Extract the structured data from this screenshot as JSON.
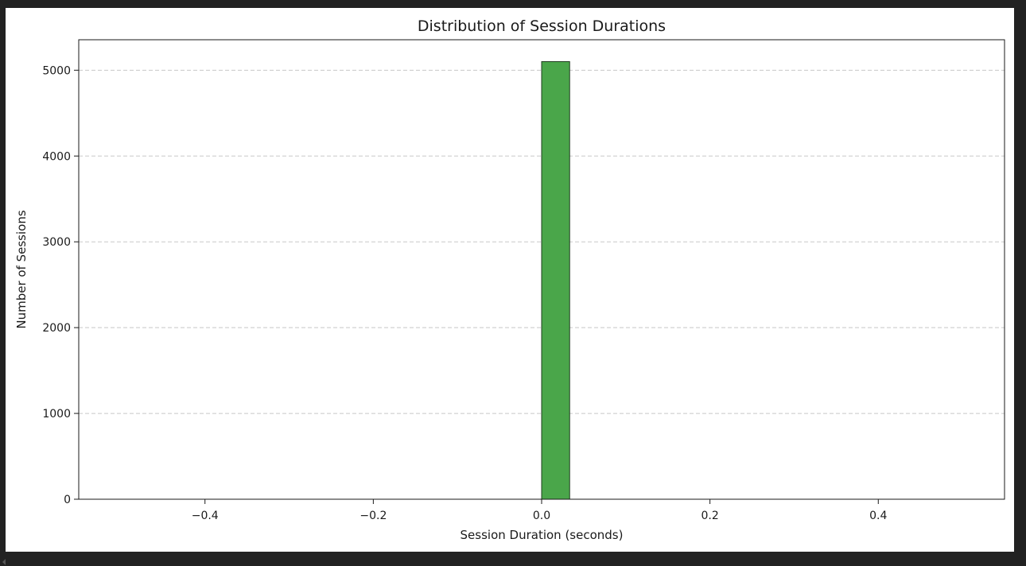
{
  "chart_data": {
    "type": "bar",
    "title": "Distribution of Session Durations",
    "xlabel": "Session Duration (seconds)",
    "ylabel": "Number of Sessions",
    "xlim": [
      -0.55,
      0.55
    ],
    "ylim": [
      0,
      5355
    ],
    "xticks": [
      -0.4,
      -0.2,
      0.0,
      0.2,
      0.4
    ],
    "xtick_labels": [
      "−0.4",
      "−0.2",
      "0.0",
      "0.2",
      "0.4"
    ],
    "yticks": [
      0,
      1000,
      2000,
      3000,
      4000,
      5000
    ],
    "ytick_labels": [
      "0",
      "1000",
      "2000",
      "3000",
      "4000",
      "5000"
    ],
    "grid": "y-dashed",
    "bins": [
      {
        "x0": -0.5,
        "x1": -0.4667,
        "count": 0
      },
      {
        "x0": -0.4667,
        "x1": -0.4333,
        "count": 0
      },
      {
        "x0": -0.4333,
        "x1": -0.4,
        "count": 0
      },
      {
        "x0": -0.4,
        "x1": -0.3667,
        "count": 0
      },
      {
        "x0": -0.3667,
        "x1": -0.3333,
        "count": 0
      },
      {
        "x0": -0.3333,
        "x1": -0.3,
        "count": 0
      },
      {
        "x0": -0.3,
        "x1": -0.2667,
        "count": 0
      },
      {
        "x0": -0.2667,
        "x1": -0.2333,
        "count": 0
      },
      {
        "x0": -0.2333,
        "x1": -0.2,
        "count": 0
      },
      {
        "x0": -0.2,
        "x1": -0.1667,
        "count": 0
      },
      {
        "x0": -0.1667,
        "x1": -0.1333,
        "count": 0
      },
      {
        "x0": -0.1333,
        "x1": -0.1,
        "count": 0
      },
      {
        "x0": -0.1,
        "x1": -0.0667,
        "count": 0
      },
      {
        "x0": -0.0667,
        "x1": -0.0333,
        "count": 0
      },
      {
        "x0": -0.0333,
        "x1": 0.0,
        "count": 0
      },
      {
        "x0": 0.0,
        "x1": 0.0333,
        "count": 5100
      },
      {
        "x0": 0.0333,
        "x1": 0.0667,
        "count": 0
      },
      {
        "x0": 0.0667,
        "x1": 0.1,
        "count": 0
      },
      {
        "x0": 0.1,
        "x1": 0.1333,
        "count": 0
      },
      {
        "x0": 0.1333,
        "x1": 0.1667,
        "count": 0
      },
      {
        "x0": 0.1667,
        "x1": 0.2,
        "count": 0
      },
      {
        "x0": 0.2,
        "x1": 0.2333,
        "count": 0
      },
      {
        "x0": 0.2333,
        "x1": 0.2667,
        "count": 0
      },
      {
        "x0": 0.2667,
        "x1": 0.3,
        "count": 0
      },
      {
        "x0": 0.3,
        "x1": 0.3333,
        "count": 0
      },
      {
        "x0": 0.3333,
        "x1": 0.3667,
        "count": 0
      },
      {
        "x0": 0.3667,
        "x1": 0.4,
        "count": 0
      },
      {
        "x0": 0.4,
        "x1": 0.4333,
        "count": 0
      },
      {
        "x0": 0.4333,
        "x1": 0.4667,
        "count": 0
      },
      {
        "x0": 0.4667,
        "x1": 0.5,
        "count": 0
      }
    ],
    "bar_color": "#4aa64a",
    "bar_edge_color": "#1f3d1f"
  }
}
